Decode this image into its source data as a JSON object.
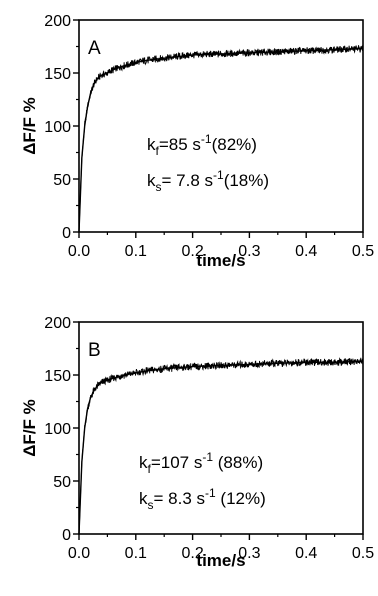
{
  "chart_data": [
    {
      "panel": "A",
      "type": "line",
      "xlabel": "time/s",
      "ylabel": "ΔF/F %",
      "xlim": [
        0.0,
        0.5
      ],
      "ylim": [
        0,
        200
      ],
      "x_ticks": [
        "0.0",
        "0.1",
        "0.2",
        "0.3",
        "0.4",
        "0.5"
      ],
      "y_ticks": [
        "0",
        "50",
        "100",
        "150",
        "200"
      ],
      "grid": false,
      "annotation": {
        "line1_prefix": "k",
        "line1_sub": "f",
        "line1_mid": "=85 s",
        "line1_sup": "-1",
        "line1_suffix": "(82%)",
        "line2_prefix": "k",
        "line2_sub": "s",
        "line2_mid": "= 7.8 s",
        "line2_sup": "-1",
        "line2_suffix": "(18%)"
      },
      "series": [
        {
          "x": [
            0.0,
            0.005,
            0.01,
            0.015,
            0.02,
            0.025,
            0.03,
            0.035,
            0.04,
            0.05,
            0.06,
            0.08,
            0.1,
            0.12,
            0.15,
            0.2,
            0.25,
            0.3,
            0.35,
            0.4,
            0.45,
            0.5
          ],
          "y": [
            0,
            70,
            100,
            118,
            130,
            138,
            143,
            146,
            148,
            150,
            153,
            157,
            160,
            162,
            164,
            167,
            168,
            169,
            170,
            171,
            172,
            173
          ]
        }
      ]
    },
    {
      "panel": "B",
      "type": "line",
      "xlabel": "time/s",
      "ylabel": "ΔF/F %",
      "xlim": [
        0.0,
        0.5
      ],
      "ylim": [
        0,
        200
      ],
      "x_ticks": [
        "0.0",
        "0.1",
        "0.2",
        "0.3",
        "0.4",
        "0.5"
      ],
      "y_ticks": [
        "0",
        "50",
        "100",
        "150",
        "200"
      ],
      "grid": false,
      "annotation": {
        "line1_prefix": "k",
        "line1_sub": "f",
        "line1_mid": "=107 s",
        "line1_sup": "-1",
        "line1_suffix": " (88%)",
        "line2_prefix": "k",
        "line2_sub": "s",
        "line2_mid": "=  8.3 s",
        "line2_sup": "-1",
        "line2_suffix": " (12%)"
      },
      "series": [
        {
          "x": [
            0.0,
            0.005,
            0.01,
            0.015,
            0.02,
            0.025,
            0.03,
            0.035,
            0.04,
            0.05,
            0.06,
            0.08,
            0.1,
            0.12,
            0.15,
            0.2,
            0.25,
            0.3,
            0.35,
            0.4,
            0.45,
            0.5
          ],
          "y": [
            0,
            68,
            100,
            118,
            128,
            134,
            138,
            141,
            143,
            145,
            147,
            150,
            152,
            154,
            156,
            158,
            159,
            160,
            161,
            162,
            162,
            163
          ]
        }
      ]
    }
  ]
}
